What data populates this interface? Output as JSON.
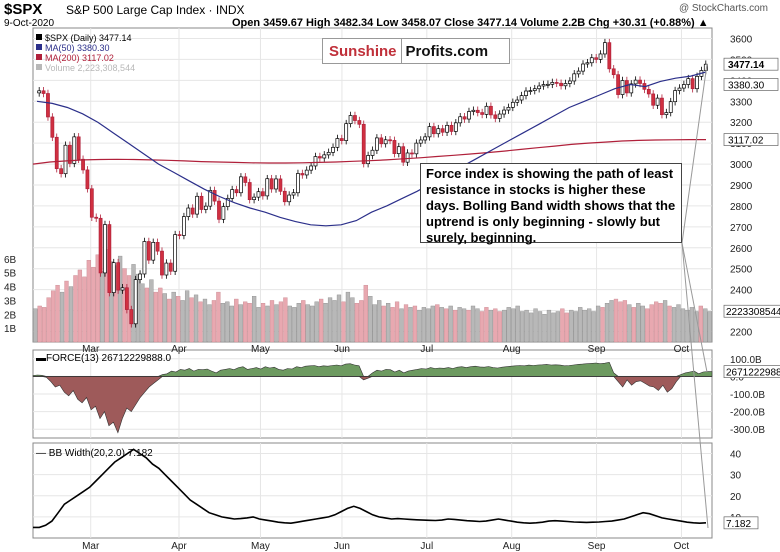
{
  "header": {
    "ticker": "$SPX",
    "description": "S&P 500 Large Cap Index · INDX",
    "date": "9-Oct-2020",
    "ohlc_text": "Open 3459.67  High 3482.34  Low 3458.07  Close 3477.14  Volume 2.2B  Chg +30.31 (+0.88%) ▲",
    "watermark": "@ StockCharts.com"
  },
  "logo": {
    "part1": "Sunshine",
    "part2": "Profits.com"
  },
  "annotation": "Force index is showing the path of least resistance in stocks is higher these days. Bolling Band width shows that the uptrend is only beginning - slowly but surely, beginning.",
  "colors": {
    "price_bar": "#000000",
    "ma50": "#2b2f8a",
    "ma200": "#b0203a",
    "volume_up": "#b8b8b8",
    "volume_down": "#e8a8b0",
    "force_pos": "#6d9a60",
    "force_neg": "#9e5a5a",
    "grid": "#e6e6e6",
    "annotation_line": "#999999"
  },
  "chart_data": [
    {
      "type": "candlestick",
      "title": "$SPX (Daily) 3477.14",
      "legend": [
        {
          "label": "$SPX (Daily) 3477.14",
          "color": "#000000"
        },
        {
          "label": "MA(50) 3380.30",
          "color": "#2b2f8a"
        },
        {
          "label": "MA(200) 3117.02",
          "color": "#b0203a"
        },
        {
          "label": "Volume 2,223,308,544",
          "color": "#b8b8b8"
        }
      ],
      "x_labels": [
        "Mar",
        "Apr",
        "May",
        "Jun",
        "Jul",
        "Aug",
        "Sep",
        "Oct"
      ],
      "ylim": [
        2150,
        3650
      ],
      "y_ticks": [
        2200,
        2300,
        2400,
        2500,
        2600,
        2700,
        2800,
        2900,
        3000,
        3100,
        3200,
        3300,
        3400,
        3500,
        3600
      ],
      "price_close": [
        3350,
        3337,
        3225,
        3128,
        2978,
        2954,
        3090,
        3003,
        3130,
        3023,
        2972,
        2882,
        2746,
        2741,
        2480,
        2711,
        2386,
        2529,
        2398,
        2409,
        2305,
        2237,
        2448,
        2475,
        2630,
        2541,
        2626,
        2584,
        2470,
        2527,
        2488,
        2663,
        2659,
        2749,
        2790,
        2761,
        2846,
        2783,
        2799,
        2874,
        2823,
        2736,
        2797,
        2836,
        2878,
        2863,
        2939,
        2912,
        2830,
        2842,
        2868,
        2848,
        2930,
        2881,
        2929,
        2870,
        2820,
        2852,
        2863,
        2955,
        2948,
        2971,
        2991,
        3036,
        3029,
        3044,
        3056,
        3080,
        3122,
        3112,
        3193,
        3232,
        3208,
        3190,
        3002,
        3041,
        3066,
        3125,
        3097,
        3116,
        3113,
        3050,
        3083,
        3009,
        3053,
        3049,
        3100,
        3115,
        3130,
        3179,
        3145,
        3169,
        3152,
        3185,
        3156,
        3197,
        3226,
        3215,
        3251,
        3257,
        3246,
        3237,
        3276,
        3235,
        3218,
        3239,
        3258,
        3271,
        3295,
        3306,
        3327,
        3349,
        3351,
        3360,
        3373,
        3380,
        3381,
        3390,
        3386,
        3374,
        3385,
        3397,
        3431,
        3444,
        3478,
        3484,
        3508,
        3500,
        3526,
        3580,
        3455,
        3427,
        3332,
        3399,
        3340,
        3383,
        3401,
        3385,
        3357,
        3335,
        3281,
        3315,
        3236,
        3246,
        3298,
        3351,
        3363,
        3380,
        3408,
        3360,
        3419,
        3447,
        3477
      ],
      "ma50": [
        3300,
        3290,
        3270,
        3240,
        3200,
        3150,
        3100,
        3050,
        3000,
        2960,
        2920,
        2880,
        2845,
        2815,
        2790,
        2770,
        2745,
        2725,
        2710,
        2705,
        2710,
        2730,
        2770,
        2800,
        2835,
        2870,
        2910,
        2950,
        2990,
        3030,
        3070,
        3110,
        3150,
        3190,
        3230,
        3270,
        3300,
        3330,
        3360,
        3380,
        3370,
        3395,
        3410,
        3420,
        3440
      ],
      "ma200": [
        3000,
        3010,
        3015,
        3020,
        3022,
        3023,
        3022,
        3020,
        3018,
        3015,
        3012,
        3010,
        3008,
        3006,
        3005,
        3005,
        3006,
        3008,
        3010,
        3013,
        3016,
        3020,
        3025,
        3030,
        3036,
        3042,
        3048,
        3055,
        3062,
        3070,
        3078,
        3086,
        3094,
        3100,
        3105,
        3110,
        3113,
        3115,
        3116,
        3117,
        3117
      ],
      "y_current_labels": [
        "3477.14",
        "3380.30",
        "3117.02"
      ]
    },
    {
      "type": "bar",
      "name": "Volume",
      "y_ticks_labels": [
        "1B",
        "2B",
        "3B",
        "4B",
        "5B",
        "6B"
      ],
      "y_ticks": [
        1,
        2,
        3,
        4,
        5,
        6
      ],
      "ylim": [
        0,
        7
      ],
      "values_billion": [
        2.4,
        2.6,
        2.5,
        3.2,
        3.7,
        4.1,
        3.6,
        4.4,
        4.0,
        4.8,
        5.2,
        4.7,
        5.9,
        5.4,
        6.3,
        5.1,
        6.7,
        5.8,
        5.5,
        6.2,
        5.3,
        4.8,
        5.6,
        4.9,
        4.2,
        3.9,
        4.5,
        3.6,
        3.9,
        3.5,
        3.1,
        3.6,
        3.3,
        3.0,
        3.7,
        3.2,
        3.4,
        2.9,
        3.1,
        2.7,
        3.0,
        3.6,
        2.8,
        2.9,
        2.6,
        3.1,
        2.7,
        2.9,
        2.8,
        3.3,
        2.5,
        2.8,
        2.6,
        3.0,
        2.7,
        2.9,
        3.2,
        2.6,
        2.5,
        2.8,
        3.0,
        2.7,
        2.6,
        2.9,
        3.1,
        2.8,
        3.2,
        3.0,
        3.4,
        2.9,
        3.6,
        3.2,
        2.8,
        3.0,
        4.1,
        3.3,
        2.7,
        3.0,
        2.6,
        2.8,
        2.5,
        2.9,
        2.4,
        2.7,
        2.5,
        2.6,
        2.3,
        2.5,
        2.4,
        2.6,
        2.7,
        2.5,
        2.4,
        2.6,
        2.3,
        2.5,
        2.4,
        2.3,
        2.6,
        2.4,
        2.2,
        2.5,
        2.3,
        2.4,
        2.2,
        2.3,
        2.5,
        2.4,
        2.6,
        2.2,
        2.3,
        2.1,
        2.4,
        2.2,
        2.0,
        2.3,
        2.1,
        2.2,
        2.4,
        2.1,
        2.3,
        2.2,
        2.5,
        2.3,
        2.4,
        2.2,
        2.6,
        2.5,
        2.8,
        3.0,
        3.1,
        2.9,
        3.0,
        2.7,
        2.5,
        2.8,
        2.6,
        2.4,
        2.7,
        2.9,
        2.8,
        3.0,
        2.6,
        2.5,
        2.7,
        2.4,
        2.3,
        2.5,
        2.2,
        2.6,
        2.4,
        2.2
      ],
      "current_label": "2223308544"
    },
    {
      "type": "area",
      "name": "FORCE(13) 26712229888.0",
      "ylim": [
        -350,
        150
      ],
      "y_ticks": [
        100,
        0,
        -100,
        -200,
        -300
      ],
      "y_tick_labels": [
        "100.0B",
        "0.0",
        "-100.0B",
        "-200.0B",
        "-300.0B"
      ],
      "values_billion": [
        5,
        8,
        6,
        -5,
        -30,
        -60,
        -50,
        -90,
        -110,
        -80,
        -130,
        -150,
        -120,
        -190,
        -170,
        -240,
        -200,
        -280,
        -260,
        -320,
        -240,
        -180,
        -200,
        -160,
        -120,
        -90,
        -60,
        -40,
        -20,
        10,
        15,
        30,
        25,
        40,
        35,
        45,
        30,
        40,
        38,
        42,
        30,
        20,
        35,
        40,
        45,
        38,
        50,
        55,
        40,
        45,
        50,
        42,
        55,
        48,
        52,
        40,
        35,
        45,
        42,
        55,
        50,
        58,
        60,
        62,
        55,
        60,
        58,
        62,
        65,
        60,
        70,
        72,
        65,
        60,
        -20,
        -10,
        20,
        35,
        30,
        40,
        38,
        25,
        35,
        20,
        30,
        35,
        40,
        45,
        42,
        50,
        45,
        48,
        46,
        50,
        45,
        52,
        55,
        50,
        55,
        58,
        54,
        52,
        56,
        50,
        48,
        52,
        55,
        58,
        60,
        62,
        60,
        64,
        62,
        65,
        66,
        68,
        65,
        66,
        64,
        60,
        62,
        65,
        68,
        70,
        72,
        74,
        76,
        72,
        75,
        80,
        20,
        -30,
        -60,
        -20,
        -50,
        -30,
        -25,
        -40,
        -55,
        -60,
        -80,
        -50,
        -90,
        -70,
        -30,
        10,
        20,
        25,
        30,
        15,
        25,
        28,
        27
      ],
      "current_label": "26712229888"
    },
    {
      "type": "line",
      "name": "BB Width(20,2.0) 7.182",
      "ylim": [
        0,
        45
      ],
      "y_ticks": [
        40,
        30,
        20,
        10
      ],
      "values": [
        5,
        5,
        6,
        8,
        12,
        16,
        18,
        20,
        22,
        24,
        27,
        30,
        33,
        36,
        38,
        40,
        42,
        40,
        38,
        35,
        33,
        30,
        27,
        24,
        21,
        18,
        16,
        14,
        12,
        11,
        10,
        9.5,
        9,
        9.2,
        9.5,
        10,
        9,
        8.5,
        8,
        7.5,
        7.2,
        7,
        7.5,
        8,
        8.5,
        9,
        9.5,
        10,
        11,
        12.5,
        14,
        15,
        14,
        12.5,
        11,
        10,
        9.5,
        9,
        9.2,
        9,
        8.8,
        8.6,
        8.5,
        8.4,
        8.3,
        8.5,
        9,
        8.8,
        8.5,
        8.2,
        8,
        7.8,
        8,
        8.5,
        9,
        8.5,
        8,
        7.5,
        7.2,
        7,
        7.2,
        7.5,
        8,
        8.2,
        8,
        7.8,
        7.6,
        7.5,
        7.4,
        7.5,
        7.6,
        7.8,
        8,
        8.5,
        9,
        10,
        11,
        12,
        11.5,
        10.5,
        9.5,
        9,
        8.5,
        8,
        7.5,
        7.2,
        7,
        7.18
      ],
      "current_label": "7.182"
    }
  ]
}
